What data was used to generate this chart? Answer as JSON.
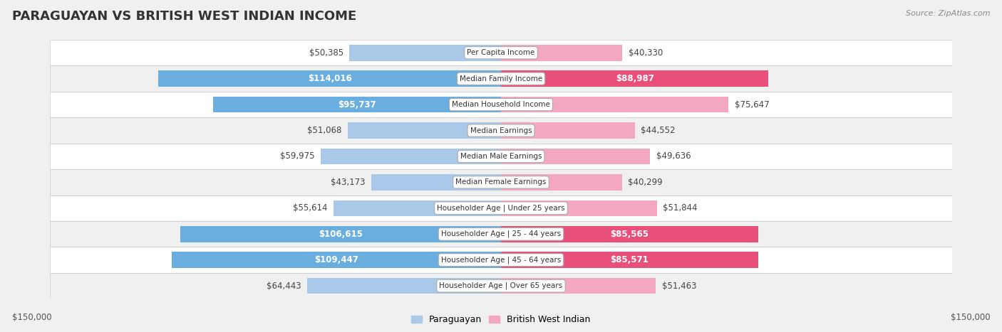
{
  "title": "PARAGUAYAN VS BRITISH WEST INDIAN INCOME",
  "source": "Source: ZipAtlas.com",
  "categories": [
    "Per Capita Income",
    "Median Family Income",
    "Median Household Income",
    "Median Earnings",
    "Median Male Earnings",
    "Median Female Earnings",
    "Householder Age | Under 25 years",
    "Householder Age | 25 - 44 years",
    "Householder Age | 45 - 64 years",
    "Householder Age | Over 65 years"
  ],
  "paraguayan_values": [
    50385,
    114016,
    95737,
    51068,
    59975,
    43173,
    55614,
    106615,
    109447,
    64443
  ],
  "british_values": [
    40330,
    88987,
    75647,
    44552,
    49636,
    40299,
    51844,
    85565,
    85571,
    51463
  ],
  "paraguayan_color_light": "#aac8e8",
  "paraguayan_color_dark": "#6aaee0",
  "british_color_light": "#f4a8c0",
  "british_color_dark": "#e8507a",
  "background_color": "#f0f0f0",
  "row_bg_even": "#ffffff",
  "row_bg_odd": "#f0f0f0",
  "max_value": 150000,
  "legend_paraguayan": "Paraguayan",
  "legend_british": "British West Indian",
  "axis_label_left": "$150,000",
  "axis_label_right": "$150,000",
  "inside_label_threshold": 80000,
  "label_fontsize": 8.5,
  "cat_fontsize": 7.5
}
